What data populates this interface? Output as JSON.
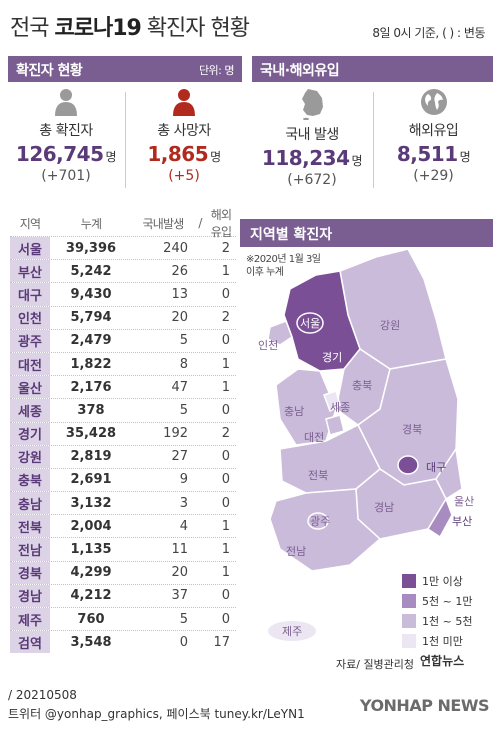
{
  "header": {
    "title_prefix": "전국 ",
    "title_bold": "코로나19",
    "title_suffix": " 확진자 현황",
    "basis": "8일 0시 기준, ( ) : 변동"
  },
  "confirmed_section": {
    "label": "확진자 현황",
    "unit": "단위: 명"
  },
  "origin_section": {
    "label": "국내·해외유입"
  },
  "stats": [
    {
      "label": "총 확진자",
      "value": "126,745",
      "unit": "명",
      "diff": "(+701)",
      "icon": "person-icon"
    },
    {
      "label": "총 사망자",
      "value": "1,865",
      "unit": "명",
      "diff": "(+5)",
      "icon": "person-icon-red"
    },
    {
      "label": "국내 발생",
      "value": "118,234",
      "unit": "명",
      "diff": "(+672)",
      "icon": "korea-map-icon"
    },
    {
      "label": "해외유입",
      "value": "8,511",
      "unit": "명",
      "diff": "(+29)",
      "icon": "globe-icon"
    }
  ],
  "table": {
    "headers": [
      "지역",
      "누계",
      "국내발생",
      "해외유입"
    ],
    "header_sep": " / ",
    "rows": [
      [
        "서울",
        "39,396",
        "240",
        "2"
      ],
      [
        "부산",
        "5,242",
        "26",
        "1"
      ],
      [
        "대구",
        "9,430",
        "13",
        "0"
      ],
      [
        "인천",
        "5,794",
        "20",
        "2"
      ],
      [
        "광주",
        "2,479",
        "5",
        "0"
      ],
      [
        "대전",
        "1,822",
        "8",
        "1"
      ],
      [
        "울산",
        "2,176",
        "47",
        "1"
      ],
      [
        "세종",
        "378",
        "5",
        "0"
      ],
      [
        "경기",
        "35,428",
        "192",
        "2"
      ],
      [
        "강원",
        "2,819",
        "27",
        "0"
      ],
      [
        "충북",
        "2,691",
        "9",
        "0"
      ],
      [
        "충남",
        "3,132",
        "3",
        "0"
      ],
      [
        "전북",
        "2,004",
        "4",
        "1"
      ],
      [
        "전남",
        "1,135",
        "11",
        "1"
      ],
      [
        "경북",
        "4,299",
        "20",
        "1"
      ],
      [
        "경남",
        "4,212",
        "37",
        "0"
      ],
      [
        "제주",
        "760",
        "5",
        "0"
      ],
      [
        "검역",
        "3,548",
        "0",
        "17"
      ]
    ]
  },
  "map": {
    "title": "지역별 확진자",
    "note_line1": "※2020년 1월 3일",
    "note_line2": "이후 누계",
    "regions": {
      "seoul": "서울",
      "incheon": "인천",
      "gyeonggi": "경기",
      "gangwon": "강원",
      "chungbuk": "충북",
      "chungnam": "충남",
      "sejong": "세종",
      "daejeon": "대전",
      "gyeongbuk": "경북",
      "daegu": "대구",
      "jeonbuk": "전북",
      "ulsan": "울산",
      "gwangju": "광주",
      "gyeongnam": "경남",
      "busan": "부산",
      "jeonnam": "전남",
      "jeju": "제주"
    },
    "legend": [
      {
        "label": "1만 이상",
        "color": "#7b4f96"
      },
      {
        "label": "5천 ~ 1만",
        "color": "#a88bc0"
      },
      {
        "label": "1천 ~ 5천",
        "color": "#cbbbdb"
      },
      {
        "label": "1천 미만",
        "color": "#ece6f2"
      }
    ]
  },
  "source": "자료/ 질병관리청",
  "brand": "연합뉴스",
  "footer": {
    "line1": "/ 20210508",
    "line2": "트위터 @yonhap_graphics, 페이스북 tuney.kr/LeYN1"
  },
  "watermark": "YONHAP NEWS"
}
